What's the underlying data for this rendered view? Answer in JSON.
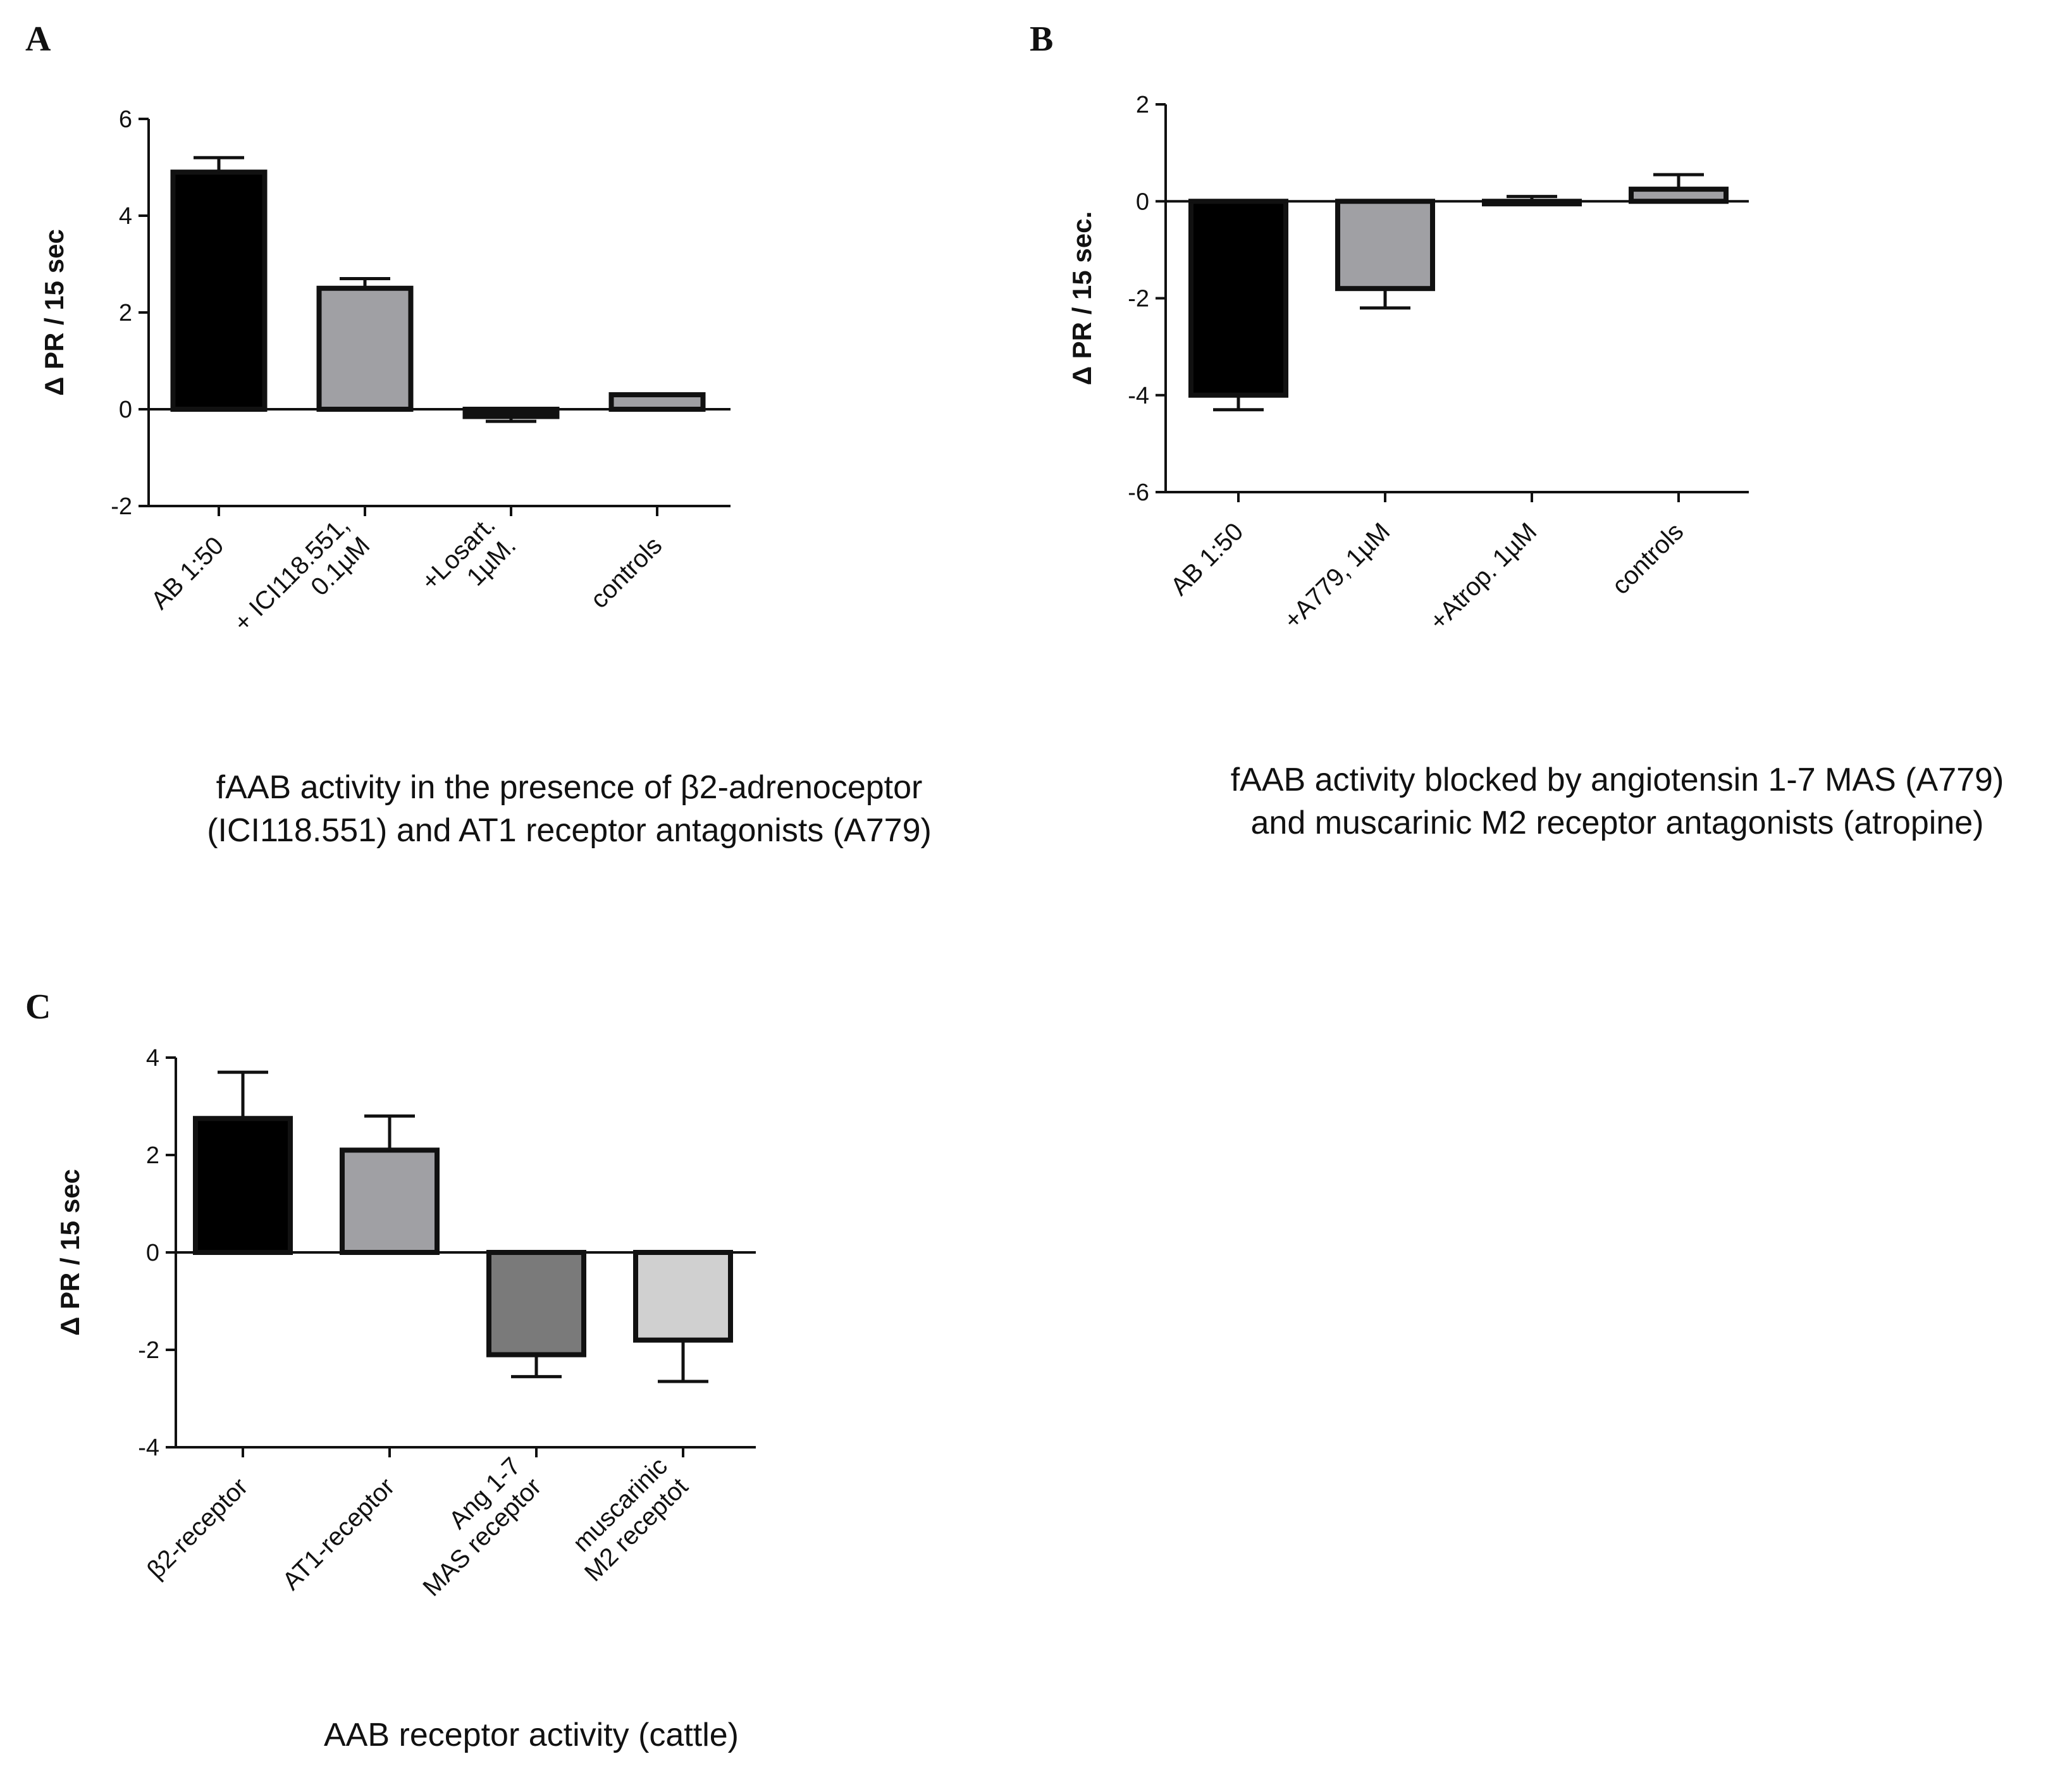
{
  "chart_data": [
    {
      "type": "bar",
      "panel": "A",
      "ylabel": "Δ PR / 15 sec",
      "xlabel": "",
      "ylim": [
        -2,
        6
      ],
      "yticks": [
        -2,
        0,
        2,
        4,
        6
      ],
      "categories": [
        [
          "AB 1:50"
        ],
        [
          "+ ICI118.551,",
          "0.1µM"
        ],
        [
          "+Losart.",
          "1µM."
        ],
        [
          "controls"
        ]
      ],
      "values": [
        4.9,
        2.5,
        -0.15,
        0.3
      ],
      "errors": [
        0.3,
        0.2,
        0.1,
        0.0
      ],
      "colors": [
        "#000000",
        "#a0a0a4",
        "#111111",
        "#a0a0a4"
      ],
      "caption": [
        "fAAB activity in the presence of β2-adrenoceptor",
        "(ICI118.551) and AT1 receptor antagonists (A779)"
      ]
    },
    {
      "type": "bar",
      "panel": "B",
      "ylabel": "Δ PR / 15 sec.",
      "xlabel": "",
      "ylim": [
        -6,
        2
      ],
      "yticks": [
        -6,
        -4,
        -2,
        0,
        2
      ],
      "categories": [
        [
          "AB 1:50"
        ],
        [
          "+A779, 1µM"
        ],
        [
          "+Atrop. 1µM"
        ],
        [
          "controls"
        ]
      ],
      "values": [
        -4.0,
        -1.8,
        0.0,
        0.25
      ],
      "errors": [
        0.3,
        0.4,
        0.1,
        0.3
      ],
      "colors": [
        "#000000",
        "#a0a0a4",
        "#111111",
        "#a0a0a4"
      ],
      "caption": [
        "fAAB activity blocked by angiotensin 1-7 MAS (A779)",
        "and muscarinic M2 receptor antagonists (atropine)"
      ]
    },
    {
      "type": "bar",
      "panel": "C",
      "ylabel": "Δ PR / 15 sec",
      "xlabel": "",
      "ylim": [
        -4,
        4
      ],
      "yticks": [
        -4,
        -2,
        0,
        2,
        4
      ],
      "categories": [
        [
          "β2-receptor"
        ],
        [
          "AT1-receptor"
        ],
        [
          "Ang 1-7",
          "MAS receptor"
        ],
        [
          "muscarinic",
          "M2 receptot"
        ]
      ],
      "values": [
        2.75,
        2.1,
        -2.1,
        -1.8
      ],
      "errors": [
        0.95,
        0.7,
        0.45,
        0.85
      ],
      "colors": [
        "#000000",
        "#a0a0a4",
        "#7a7a7a",
        "#d0d0d0"
      ],
      "caption": [
        "AAB receptor activity (cattle)"
      ]
    }
  ]
}
